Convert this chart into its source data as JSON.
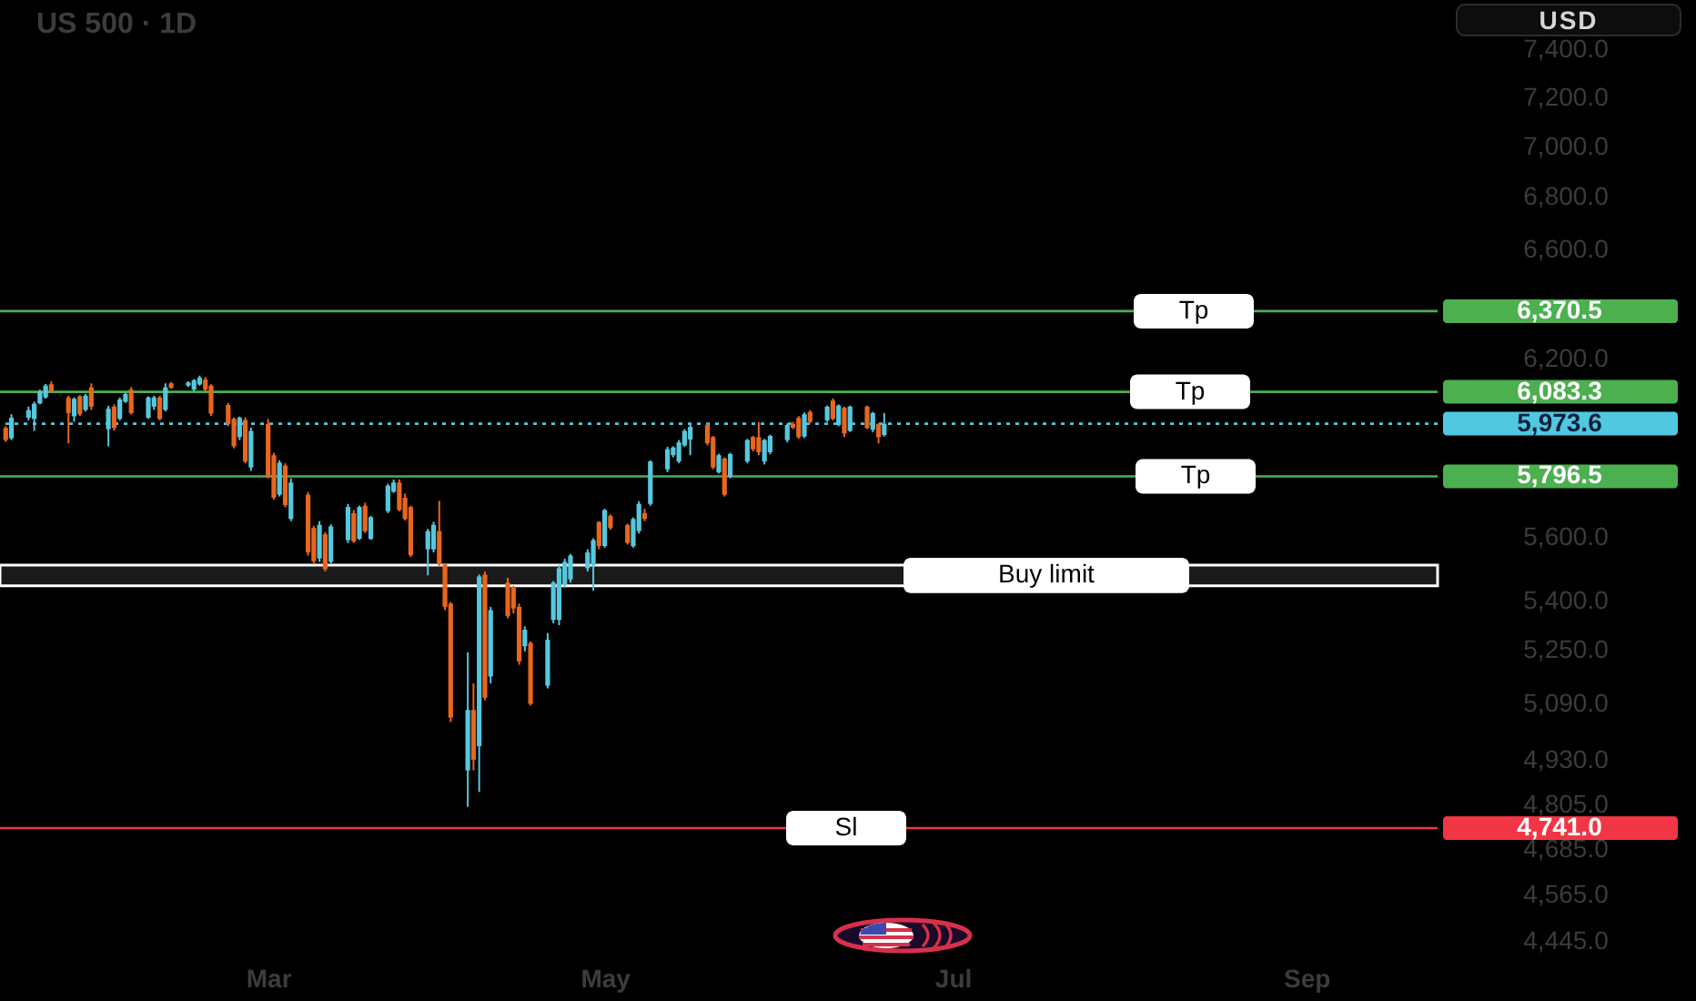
{
  "chart_data": {
    "type": "candlestick",
    "title": "US 500 · 1D",
    "ylabel": "USD",
    "x": [
      "--01-16",
      "--01-17",
      "--01-20",
      "--01-21",
      "--01-22",
      "--01-23",
      "--01-24",
      "--01-27",
      "--01-28",
      "--01-29",
      "--01-30",
      "--01-31",
      "--02-03",
      "--02-04",
      "--02-05",
      "--02-06",
      "--02-07",
      "--02-10",
      "--02-11",
      "--02-12",
      "--02-13",
      "--02-14",
      "--02-17",
      "--02-18",
      "--02-19",
      "--02-20",
      "--02-21",
      "--02-24",
      "--02-25",
      "--02-26",
      "--02-27",
      "--02-28",
      "--03-03",
      "--03-04",
      "--03-05",
      "--03-06",
      "--03-07",
      "--03-10",
      "--03-11",
      "--03-12",
      "--03-13",
      "--03-14",
      "--03-17",
      "--03-18",
      "--03-19",
      "--03-20",
      "--03-21",
      "--03-24",
      "--03-25",
      "--03-26",
      "--03-27",
      "--03-28",
      "--03-31",
      "--04-01",
      "--04-02",
      "--04-03",
      "--04-04",
      "--04-07",
      "--04-08",
      "--04-09",
      "--04-10",
      "--04-11",
      "--04-14",
      "--04-15",
      "--04-16",
      "--04-17",
      "--04-18",
      "--04-21",
      "--04-22",
      "--04-23",
      "--04-24",
      "--04-25",
      "--04-28",
      "--04-29",
      "--04-30",
      "--05-01",
      "--05-02",
      "--05-05",
      "--05-06",
      "--05-07",
      "--05-08",
      "--05-09",
      "--05-12",
      "--05-13",
      "--05-14",
      "--05-15",
      "--05-16",
      "--05-19",
      "--05-20",
      "--05-21",
      "--05-22",
      "--05-23",
      "--05-26",
      "--05-27",
      "--05-28",
      "--05-29",
      "--05-30",
      "--06-02",
      "--06-03",
      "--06-04",
      "--06-05",
      "--06-06",
      "--06-09",
      "--06-10",
      "--06-11",
      "--06-12",
      "--06-13",
      "--06-16",
      "--06-17",
      "--06-18",
      "--06-19"
    ],
    "ohlc": [
      [
        5959,
        5965,
        5912,
        5918
      ],
      [
        5924,
        6006,
        5918,
        5994
      ],
      [
        5994,
        6032,
        5985,
        6020
      ],
      [
        5990,
        6049,
        5949,
        6042
      ],
      [
        6043,
        6091,
        6040,
        6085
      ],
      [
        6064,
        6111,
        6060,
        6105
      ],
      [
        6110,
        6120,
        6080,
        6085
      ],
      [
        6063,
        6070,
        5907,
        6010
      ],
      [
        5999,
        6064,
        5980,
        6059
      ],
      [
        6068,
        6072,
        6000,
        6006
      ],
      [
        6021,
        6076,
        6015,
        6070
      ],
      [
        6099,
        6113,
        6021,
        6032
      ],
      [
        5955,
        6035,
        5897,
        6025
      ],
      [
        6032,
        6040,
        5950,
        5959
      ],
      [
        5990,
        6064,
        5985,
        6057
      ],
      [
        6049,
        6080,
        6045,
        6076
      ],
      [
        6091,
        6100,
        6005,
        6010
      ],
      [
        5994,
        6068,
        5990,
        6064
      ],
      [
        6032,
        6070,
        6021,
        6064
      ],
      [
        6064,
        6070,
        5985,
        5990
      ],
      [
        6021,
        6113,
        6016,
        6099
      ],
      [
        6113,
        6118,
        6094,
        6097
      ],
      [
        6105,
        6120,
        6100,
        6116
      ],
      [
        6091,
        6128,
        6085,
        6124
      ],
      [
        6109,
        6140,
        6105,
        6133
      ],
      [
        6126,
        6135,
        6085,
        6091
      ],
      [
        6105,
        6110,
        6000,
        6008
      ],
      [
        6038,
        6045,
        5965,
        5973
      ],
      [
        5990,
        5995,
        5890,
        5897
      ],
      [
        5928,
        5998,
        5918,
        5994
      ],
      [
        5986,
        5995,
        5840,
        5846
      ],
      [
        5826,
        5960,
        5815,
        5949
      ],
      [
        5973,
        5990,
        5790,
        5796
      ],
      [
        5867,
        5875,
        5720,
        5726
      ],
      [
        5736,
        5850,
        5730,
        5842
      ],
      [
        5832,
        5840,
        5695,
        5702
      ],
      [
        5657,
        5790,
        5650,
        5776
      ],
      [
        5736,
        5745,
        5540,
        5550
      ],
      [
        5628,
        5635,
        5515,
        5522
      ],
      [
        5531,
        5650,
        5520,
        5638
      ],
      [
        5608,
        5615,
        5490,
        5497
      ],
      [
        5520,
        5640,
        5515,
        5633
      ],
      [
        5589,
        5706,
        5580,
        5696
      ],
      [
        5676,
        5686,
        5580,
        5585
      ],
      [
        5593,
        5700,
        5590,
        5696
      ],
      [
        5700,
        5710,
        5612,
        5618
      ],
      [
        5593,
        5667,
        5590,
        5663
      ],
      [
        5682,
        5772,
        5676,
        5766
      ],
      [
        5746,
        5786,
        5742,
        5776
      ],
      [
        5776,
        5786,
        5682,
        5686
      ],
      [
        5726,
        5740,
        5652,
        5657
      ],
      [
        5696,
        5700,
        5535,
        5541
      ],
      [
        5560,
        5625,
        5478,
        5618
      ],
      [
        5560,
        5648,
        5550,
        5638
      ],
      [
        5618,
        5716,
        5505,
        5512
      ],
      [
        5512,
        5515,
        5370,
        5380
      ],
      [
        5390,
        5395,
        5037,
        5050
      ],
      [
        4900,
        5242,
        4799,
        5072
      ],
      [
        5072,
        5150,
        4900,
        4930
      ],
      [
        4968,
        5480,
        4840,
        5474
      ],
      [
        5480,
        5490,
        5100,
        5108
      ],
      [
        5170,
        5380,
        5150,
        5370
      ],
      [
        5455,
        5470,
        5345,
        5352
      ],
      [
        5440,
        5445,
        5360,
        5375
      ],
      [
        5380,
        5390,
        5205,
        5215
      ],
      [
        5260,
        5320,
        5245,
        5310
      ],
      [
        5270,
        5275,
        5085,
        5090
      ],
      [
        5143,
        5300,
        5135,
        5280
      ],
      [
        5340,
        5460,
        5330,
        5455
      ],
      [
        5340,
        5510,
        5324,
        5500
      ],
      [
        5450,
        5530,
        5440,
        5520
      ],
      [
        5465,
        5545,
        5455,
        5540
      ],
      [
        5500,
        5560,
        5490,
        5550
      ],
      [
        5510,
        5595,
        5430,
        5589
      ],
      [
        5647,
        5650,
        5560,
        5570
      ],
      [
        5570,
        5690,
        5565,
        5686
      ],
      [
        5667,
        5672,
        5622,
        5628
      ],
      [
        5638,
        5642,
        5575,
        5580
      ],
      [
        5570,
        5662,
        5565,
        5657
      ],
      [
        5618,
        5715,
        5610,
        5706
      ],
      [
        5676,
        5690,
        5650,
        5657
      ],
      [
        5706,
        5850,
        5700,
        5846
      ],
      [
        5820,
        5895,
        5810,
        5887
      ],
      [
        5867,
        5897,
        5860,
        5893
      ],
      [
        5846,
        5918,
        5840,
        5910
      ],
      [
        5900,
        5955,
        5895,
        5949
      ],
      [
        5920,
        5970,
        5867,
        5963
      ],
      [
        5969,
        5975,
        5900,
        5907
      ],
      [
        5928,
        5932,
        5820,
        5826
      ],
      [
        5810,
        5872,
        5806,
        5867
      ],
      [
        5856,
        5860,
        5730,
        5736
      ],
      [
        5796,
        5875,
        5790,
        5871
      ],
      [
        5846,
        5922,
        5840,
        5918
      ],
      [
        5928,
        5932,
        5880,
        5887
      ],
      [
        5928,
        5979,
        5867,
        5877
      ],
      [
        5846,
        5922,
        5836,
        5918
      ],
      [
        5877,
        5936,
        5870,
        5932
      ],
      [
        5918,
        5975,
        5910,
        5969
      ],
      [
        5973,
        5980,
        5955,
        5960
      ],
      [
        5994,
        6000,
        5922,
        5928
      ],
      [
        5930,
        6012,
        5925,
        6006
      ],
      [
        6014,
        6020,
        5975,
        5980
      ],
      [
        5985,
        6036,
        5980,
        6032
      ],
      [
        6053,
        6060,
        5985,
        5990
      ],
      [
        5969,
        6040,
        5965,
        6036
      ],
      [
        6028,
        6032,
        5928,
        5940
      ],
      [
        5949,
        6036,
        5945,
        6032
      ],
      [
        6032,
        6036,
        5955,
        5959
      ],
      [
        5953,
        6014,
        5945,
        6010
      ],
      [
        5973,
        5975,
        5907,
        5928
      ],
      [
        5935,
        6010,
        5930,
        5973.6
      ]
    ],
    "colors": [
      "#e8661e",
      "#56c8de",
      "#56c8de",
      "#56c8de",
      "#56c8de",
      "#56c8de",
      "#e8661e",
      "#e8661e",
      "#56c8de",
      "#e8661e",
      "#56c8de",
      "#e8661e",
      "#56c8de",
      "#e8661e",
      "#56c8de",
      "#56c8de",
      "#e8661e",
      "#56c8de",
      "#56c8de",
      "#e8661e",
      "#56c8de",
      "#e8661e",
      "#56c8de",
      "#56c8de",
      "#56c8de",
      "#e8661e",
      "#e8661e",
      "#e8661e",
      "#e8661e",
      "#56c8de",
      "#e8661e",
      "#56c8de",
      "#e8661e",
      "#e8661e",
      "#56c8de",
      "#e8661e",
      "#56c8de",
      "#e8661e",
      "#e8661e",
      "#56c8de",
      "#e8661e",
      "#56c8de",
      "#56c8de",
      "#e8661e",
      "#56c8de",
      "#e8661e",
      "#56c8de",
      "#56c8de",
      "#56c8de",
      "#e8661e",
      "#e8661e",
      "#e8661e",
      "#56c8de",
      "#56c8de",
      "#e8661e",
      "#e8661e",
      "#e8661e",
      "#56c8de",
      "#e8661e",
      "#56c8de",
      "#e8661e",
      "#56c8de",
      "#e8661e",
      "#e8661e",
      "#e8661e",
      "#56c8de",
      "#e8661e",
      "#56c8de",
      "#56c8de",
      "#56c8de",
      "#56c8de",
      "#56c8de",
      "#56c8de",
      "#56c8de",
      "#e8661e",
      "#56c8de",
      "#e8661e",
      "#e8661e",
      "#56c8de",
      "#56c8de",
      "#e8661e",
      "#56c8de",
      "#56c8de",
      "#56c8de",
      "#56c8de",
      "#56c8de",
      "#56c8de",
      "#e8661e",
      "#e8661e",
      "#56c8de",
      "#e8661e",
      "#56c8de",
      "#56c8de",
      "#e8661e",
      "#e8661e",
      "#56c8de",
      "#56c8de",
      "#56c8de",
      "#e8661e",
      "#e8661e",
      "#56c8de",
      "#e8661e",
      "#56c8de",
      "#e8661e",
      "#56c8de",
      "#e8661e",
      "#56c8de",
      "#e8661e",
      "#56c8de",
      "#e8661e",
      "#56c8de"
    ],
    "xlim": [
      "--01-15",
      "--09-24"
    ],
    "xticks": [
      {
        "value": "--03-03",
        "label": "Mar"
      },
      {
        "value": "--05-01",
        "label": "May"
      },
      {
        "value": "--07-01",
        "label": "Jul"
      },
      {
        "value": "--09-01",
        "label": "Sep"
      }
    ],
    "ylim": [
      4445,
      7610
    ],
    "log": true,
    "yticks": [
      {
        "value": 4445,
        "label": "4,445.0"
      },
      {
        "value": 4565,
        "label": "4,565.0"
      },
      {
        "value": 4685,
        "label": "4,685.0"
      },
      {
        "value": 4805,
        "label": "4,805.0"
      },
      {
        "value": 4930,
        "label": "4,930.0"
      },
      {
        "value": 5090,
        "label": "5,090.0"
      },
      {
        "value": 5250,
        "label": "5,250.0"
      },
      {
        "value": 5400,
        "label": "5,400.0"
      },
      {
        "value": 5600,
        "label": "5,600.0"
      },
      {
        "value": 6200,
        "label": "6,200.0"
      },
      {
        "value": 6600,
        "label": "6,600.0"
      },
      {
        "value": 6800,
        "label": "6,800.0"
      },
      {
        "value": 7000,
        "label": "7,000.0"
      },
      {
        "value": 7200,
        "label": "7,200.0"
      },
      {
        "value": 7400,
        "label": "7,400.0"
      }
    ],
    "grid": false,
    "ref_lines": [
      {
        "axis": "y",
        "value": 6370.5,
        "label": "Tp",
        "color": "#4caf50"
      },
      {
        "axis": "y",
        "value": 6083.3,
        "label": "Tp",
        "color": "#4caf50"
      },
      {
        "axis": "y",
        "value": 5973.6,
        "color": "#50c8e0",
        "line_style": "dotted"
      },
      {
        "axis": "y",
        "value": 5796.5,
        "label": "Tp",
        "color": "#4caf50"
      },
      {
        "axis": "y",
        "value": 4741.0,
        "label": "Sl",
        "color": "#f23645"
      }
    ],
    "bands": [
      {
        "axis": "y",
        "from": 5445,
        "to": 5510,
        "label": "Buy limit",
        "color": "#ffffff"
      }
    ],
    "annotations": [
      "6,370.5",
      "6,083.3",
      "5,973.6",
      "5,796.5",
      "4,741.0"
    ]
  }
}
